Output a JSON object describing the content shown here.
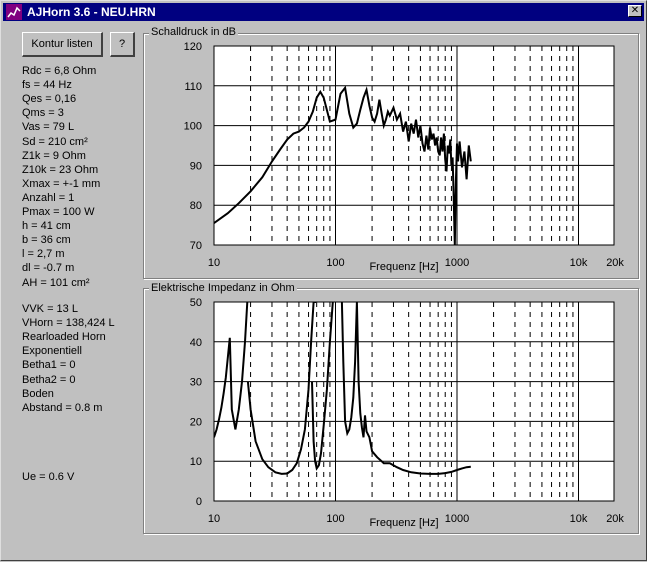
{
  "window": {
    "title": "AJHorn 3.6 - NEU.HRN",
    "close_glyph": "✕",
    "app_icon": "chart-icon"
  },
  "buttons": {
    "kontur": "Kontur listen",
    "help": "?"
  },
  "params": [
    "Rdc = 6,8 Ohm",
    "fs = 44 Hz",
    "Qes = 0,16",
    "Qms = 3",
    "Vas = 79 L",
    "Sd = 210 cm²",
    "Z1k = 9 Ohm",
    "Z10k = 23 Ohm",
    "Xmax = +-1 mm",
    "Anzahl = 1",
    "Pmax = 100 W",
    "h = 41 cm",
    "b = 36 cm",
    "l = 2,7 m",
    "dl = -0.7 m",
    "AH = 101 cm²"
  ],
  "horn_params": [
    "VVK = 13 L",
    "VHorn = 138,424 L",
    "Rearloaded Horn",
    "Exponentiell",
    "Betha1 = 0",
    "Betha2 = 0",
    "Boden",
    "Abstand = 0.8 m"
  ],
  "ue": "Ue = 0.6 V",
  "chart_data": [
    {
      "type": "line",
      "title": "Schalldruck in dB",
      "xlabel": "Frequenz [Hz]",
      "ylabel": "",
      "x_scale": "log",
      "xlim": [
        10,
        20000
      ],
      "ylim": [
        70,
        120
      ],
      "x_ticks": [
        "10",
        "100",
        "1000",
        "10k",
        "20k"
      ],
      "y_ticks": [
        "120",
        "110",
        "100",
        "90",
        "80",
        "70"
      ],
      "line_color": "#000000",
      "grid": true,
      "series": [
        {
          "x": [
            10,
            13,
            16,
            20,
            25,
            30,
            35,
            40,
            45,
            50,
            55,
            60,
            65,
            70,
            75,
            80,
            90,
            100,
            110,
            120,
            130,
            140,
            150,
            160,
            170,
            180,
            190,
            200,
            210,
            220,
            230,
            240,
            250,
            260,
            270,
            280,
            300,
            320,
            340,
            360,
            380,
            400,
            420,
            440,
            460,
            480,
            500,
            520,
            540,
            560,
            580,
            600,
            620,
            640,
            660,
            680,
            700,
            720,
            740,
            760,
            780,
            800,
            820,
            840,
            860,
            880,
            900,
            920,
            940,
            960,
            980,
            1000,
            1020,
            1050,
            1100,
            1150,
            1200,
            1250,
            1300
          ],
          "y": [
            75.5,
            78,
            80.5,
            83.5,
            87,
            91,
            94,
            96.5,
            98,
            98.5,
            99.5,
            101,
            103.5,
            107,
            108.5,
            107,
            101,
            101.5,
            108,
            109.5,
            103,
            99.5,
            100.5,
            104,
            107,
            109,
            105,
            102,
            101,
            103,
            106.5,
            103,
            100,
            101.5,
            103.5,
            102.5,
            104.5,
            101.5,
            103,
            98.5,
            101,
            96,
            100.5,
            98,
            101.5,
            97,
            100,
            95.5,
            93.5,
            97.5,
            94,
            99.5,
            96.5,
            98,
            95,
            97,
            93.5,
            92.5,
            97,
            93.5,
            98,
            91.5,
            88.5,
            95,
            93,
            96.5,
            90,
            92,
            82,
            70,
            86,
            95.5,
            91,
            96,
            89.5,
            93.5,
            86.5,
            95,
            91
          ]
        }
      ]
    },
    {
      "type": "line",
      "title": "Elektrische Impedanz in Ohm",
      "xlabel": "Frequenz [Hz]",
      "ylabel": "",
      "x_scale": "log",
      "xlim": [
        10,
        20000
      ],
      "ylim": [
        0,
        50
      ],
      "x_ticks": [
        "10",
        "100",
        "1000",
        "10k",
        "20k"
      ],
      "y_ticks": [
        "50",
        "40",
        "30",
        "20",
        "10",
        "0"
      ],
      "line_color": "#000000",
      "grid": true,
      "series": [
        {
          "x": [
            10,
            10.5,
            11,
            11.5,
            12,
            12.5,
            13,
            13.5,
            14,
            15,
            16,
            17,
            18,
            18.8,
            19.5
          ],
          "y": [
            16,
            18,
            20.5,
            23.5,
            27,
            31,
            36,
            41,
            23,
            18,
            23,
            30,
            40,
            50,
            60
          ]
        },
        {
          "x": [
            19,
            20,
            22,
            25,
            28,
            32,
            36,
            40,
            44,
            48,
            52,
            56,
            60,
            63,
            66,
            68,
            70
          ],
          "y": [
            30,
            23,
            15,
            10.5,
            8.5,
            7.2,
            6.8,
            6.9,
            7.8,
            9.5,
            13,
            18,
            28,
            40,
            50,
            50,
            55
          ]
        },
        {
          "x": [
            64,
            66,
            68,
            70,
            73,
            76,
            80,
            85,
            90,
            95,
            100
          ],
          "y": [
            30,
            15,
            10,
            8.2,
            9,
            12,
            19,
            28,
            40,
            50,
            60
          ]
        },
        {
          "x": [
            110,
            113,
            116,
            120,
            125,
            130,
            135,
            140,
            145,
            150,
            155,
            160,
            165,
            170,
            175,
            180,
            190,
            200,
            220,
            250,
            280,
            320,
            360,
            420,
            500,
            600,
            700,
            800,
            900,
            1000,
            1100,
            1200,
            1300
          ],
          "y": [
            60,
            50,
            35,
            20,
            17,
            18,
            21,
            26,
            35,
            50,
            30,
            22,
            18.5,
            16,
            21.5,
            17.5,
            16,
            12.5,
            11,
            9.5,
            9.5,
            8.5,
            7.8,
            7.2,
            6.9,
            6.8,
            6.8,
            7,
            7.3,
            7.8,
            8.2,
            8.5,
            8.6
          ]
        }
      ]
    }
  ]
}
